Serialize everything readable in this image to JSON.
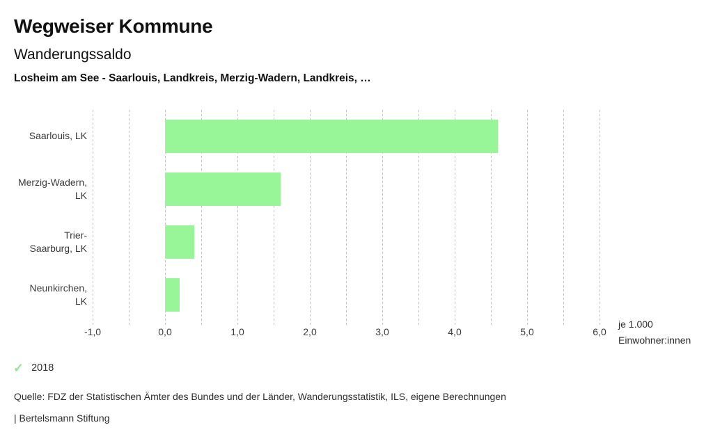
{
  "page": {
    "title": "Wegweiser Kommune",
    "subtitle": "Wanderungssaldo",
    "context": "Losheim am See - Saarlouis, Landkreis, Merzig-Wadern, Landkreis, …"
  },
  "chart_data": {
    "type": "bar",
    "orientation": "horizontal",
    "title": "Wanderungssaldo",
    "categories": [
      "Saarlouis, LK",
      "Merzig-Wadern, LK",
      "Trier-Saarburg, LK",
      "Neunkirchen, LK"
    ],
    "label_lines": [
      [
        "Saarlouis, LK"
      ],
      [
        "Merzig-Wadern,",
        "LK"
      ],
      [
        "Trier-",
        "Saarburg, LK"
      ],
      [
        "Neunkirchen,",
        "LK"
      ]
    ],
    "series": [
      {
        "name": "2018",
        "values": [
          4.6,
          1.6,
          0.4,
          0.2
        ]
      }
    ],
    "xlabel": "je 1.000 Einwohner:innen",
    "xlim": [
      -1.0,
      6.0
    ],
    "xticks": [
      -1,
      0,
      1,
      2,
      3,
      4,
      5,
      6
    ],
    "xtick_labels": [
      "-1,0",
      "0,0",
      "1,0",
      "2,0",
      "3,0",
      "4,0",
      "5,0",
      "6,0"
    ],
    "gridline_step": 0.5,
    "grid": true,
    "bar_color": "#98f598",
    "gridline_color": "#c0c0c0",
    "legend_position": "bottom-left"
  },
  "axis_unit": {
    "line1": "je 1.000",
    "line2": "Einwohner:innen"
  },
  "legend": {
    "check_icon": "✓",
    "check_color": "#92e892",
    "label": "2018"
  },
  "footer": {
    "source": "Quelle: FDZ der Statistischen Ämter des Bundes und der Länder, Wanderungsstatistik, ILS, eigene Berechnungen",
    "attribution": "| Bertelsmann Stiftung"
  }
}
